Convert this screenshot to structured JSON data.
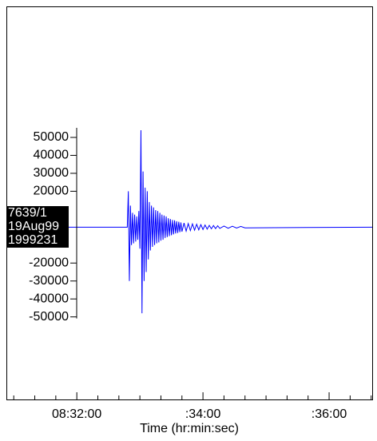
{
  "chart_data": {
    "type": "line",
    "station_labels": [
      "7639/1",
      "19Aug99",
      "1999231"
    ],
    "x_label": "Time (hr:min:sec)",
    "xlim": [
      "08:30:53",
      "08:36:41"
    ],
    "xticks": [
      "08:32:00",
      {
        "value": "08:34:00",
        "label": ":34:00"
      },
      {
        "value": "08:36:00",
        "label": ":36:00"
      }
    ],
    "xminorticks": [
      "08:31:00",
      "08:31:20",
      "08:31:40",
      "08:32:20",
      "08:32:40",
      "08:33:00",
      "08:33:20",
      "08:33:40",
      "08:34:20",
      "08:34:40",
      "08:35:00",
      "08:35:20",
      "08:35:40",
      "08:36:20",
      "08:36:40"
    ],
    "ylim": [
      -96000,
      123000
    ],
    "yticks": [
      50000,
      40000,
      30000,
      20000,
      -20000,
      -30000,
      -40000,
      -50000
    ],
    "series": [
      {
        "color": "#0000ff",
        "x": [
          "08:30:53",
          "08:32:48",
          "08:32:49",
          "08:32:50",
          "08:32:51",
          "08:32:52",
          "08:32:53",
          "08:32:54",
          "08:32:55",
          "08:32:56",
          "08:32:57",
          "08:32:58",
          "08:32:59",
          "08:33:00",
          "08:33:01",
          "08:33:02",
          "08:33:03",
          "08:33:04",
          "08:33:05",
          "08:33:06",
          "08:33:07",
          "08:33:08",
          "08:33:09",
          "08:33:10",
          "08:33:11",
          "08:33:12",
          "08:33:13",
          "08:33:14",
          "08:33:15",
          "08:33:16",
          "08:33:17",
          "08:33:18",
          "08:33:19",
          "08:33:20",
          "08:33:21",
          "08:33:22",
          "08:33:23",
          "08:33:24",
          "08:33:25",
          "08:33:26",
          "08:33:27",
          "08:33:28",
          "08:33:29",
          "08:33:30",
          "08:33:31",
          "08:33:32",
          "08:33:33",
          "08:33:34",
          "08:33:35",
          "08:33:36",
          "08:33:37",
          "08:33:38",
          "08:33:39",
          "08:33:40",
          "08:33:42",
          "08:33:44",
          "08:33:46",
          "08:33:48",
          "08:33:50",
          "08:33:52",
          "08:33:54",
          "08:33:56",
          "08:33:58",
          "08:34:00",
          "08:34:02",
          "08:34:04",
          "08:34:06",
          "08:34:08",
          "08:34:10",
          "08:34:12",
          "08:34:14",
          "08:34:16",
          "08:34:20",
          "08:34:24",
          "08:34:28",
          "08:34:32",
          "08:34:36",
          "08:34:40",
          "08:36:41"
        ],
        "values": [
          0,
          0,
          20000,
          -30000,
          12000,
          -10000,
          8000,
          -9000,
          7000,
          -8000,
          6000,
          -7000,
          9000,
          -12000,
          54000,
          -48000,
          31000,
          -30000,
          22000,
          -25000,
          20000,
          -18000,
          14000,
          -13000,
          12000,
          -11000,
          11000,
          -10000,
          9500,
          -9000,
          9000,
          -8500,
          8000,
          -7500,
          7000,
          -7000,
          6500,
          -6000,
          6000,
          -5500,
          5000,
          -5000,
          4500,
          -4500,
          4000,
          -4000,
          3800,
          -3500,
          3300,
          -3200,
          3000,
          -2800,
          2600,
          -2500,
          2300,
          -2200,
          2000,
          -1900,
          1800,
          -1700,
          1600,
          -1500,
          1400,
          -1300,
          1200,
          -1100,
          1000,
          -900,
          900,
          -800,
          800,
          -700,
          600,
          -600,
          500,
          -500,
          400,
          -400,
          0
        ]
      }
    ]
  }
}
